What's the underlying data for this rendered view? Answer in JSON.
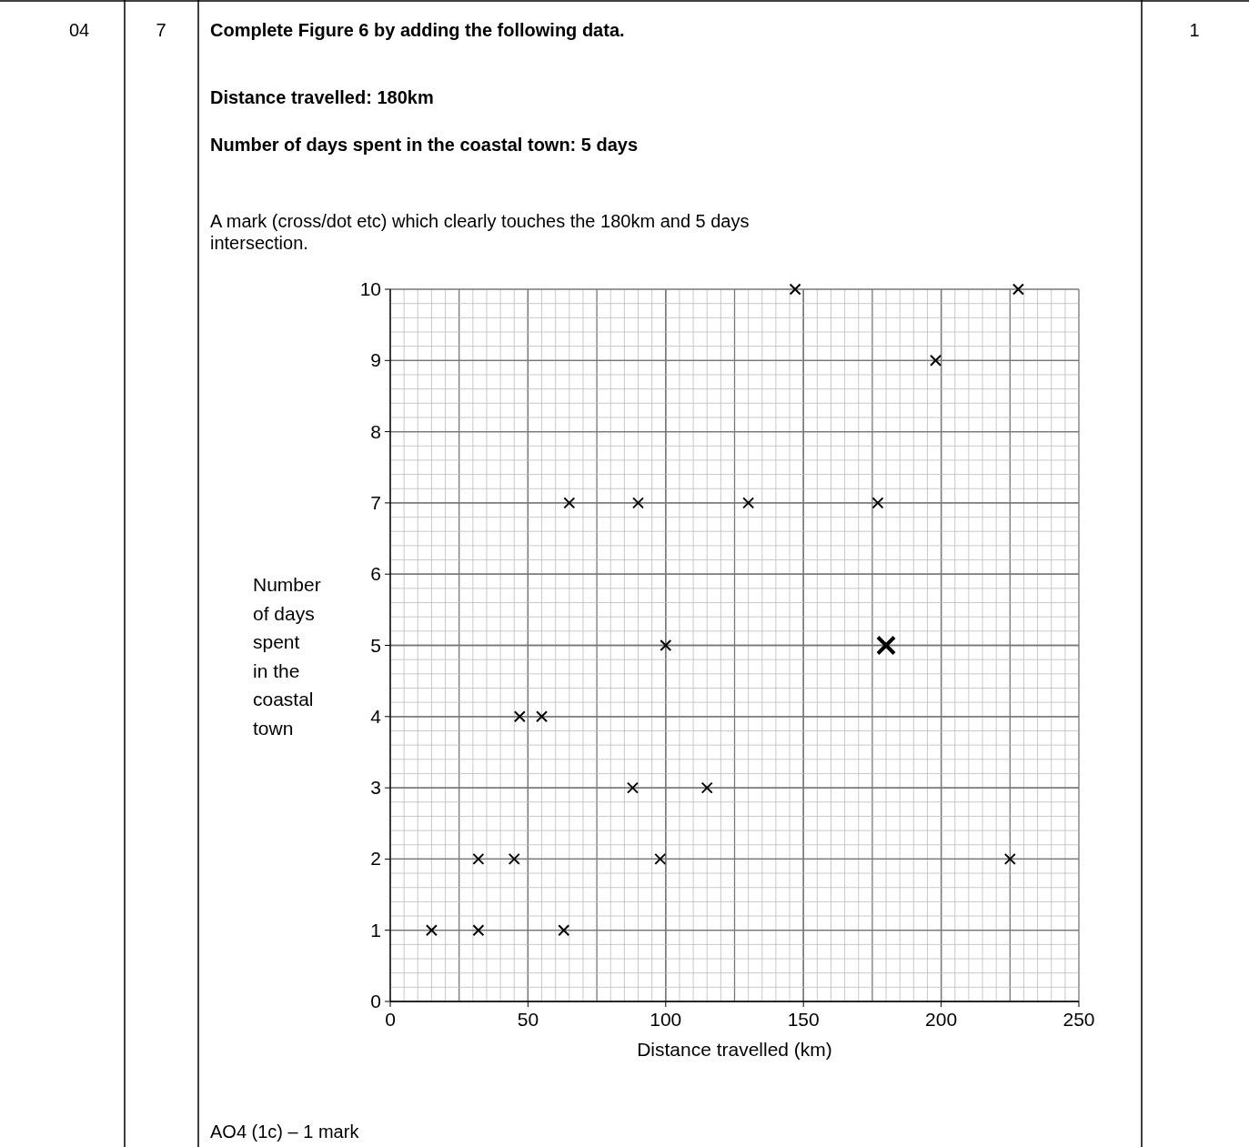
{
  "chart_data": {
    "type": "scatter",
    "title": "Complete Figure 6 by adding the following data.",
    "subtitle": "Distance travelled: 180km",
    "annotations": [
      "04",
      "7",
      "1",
      "Number of days spent in the coastal town: 5 days",
      "A mark (cross/dot etc) which clearly touches the 180km and 5 days intersection.",
      "AO4 (1c) – 1 mark"
    ],
    "xlabel": "Distance travelled (km)",
    "ylabel": "Number of days spent in the coastal town",
    "xlim": [
      0,
      250
    ],
    "xticks": [
      0,
      50,
      100,
      150,
      200,
      250
    ],
    "ylim": [
      0,
      10
    ],
    "yticks": [
      0,
      1,
      2,
      3,
      4,
      5,
      6,
      7,
      8,
      9,
      10
    ],
    "grid": true,
    "marker": "cross",
    "series": [
      {
        "color": "#000000",
        "x": [
          15,
          32,
          32,
          45,
          47,
          55,
          63,
          65,
          88,
          90,
          98,
          100,
          115,
          130,
          147,
          177,
          198,
          225,
          228
        ],
        "values": [
          1,
          2,
          1,
          2,
          4,
          4,
          1,
          7,
          3,
          7,
          2,
          5,
          3,
          7,
          10,
          7,
          9,
          2,
          10
        ]
      },
      {
        "color": "#000000",
        "x": [
          180
        ],
        "values": [
          5
        ]
      }
    ]
  }
}
